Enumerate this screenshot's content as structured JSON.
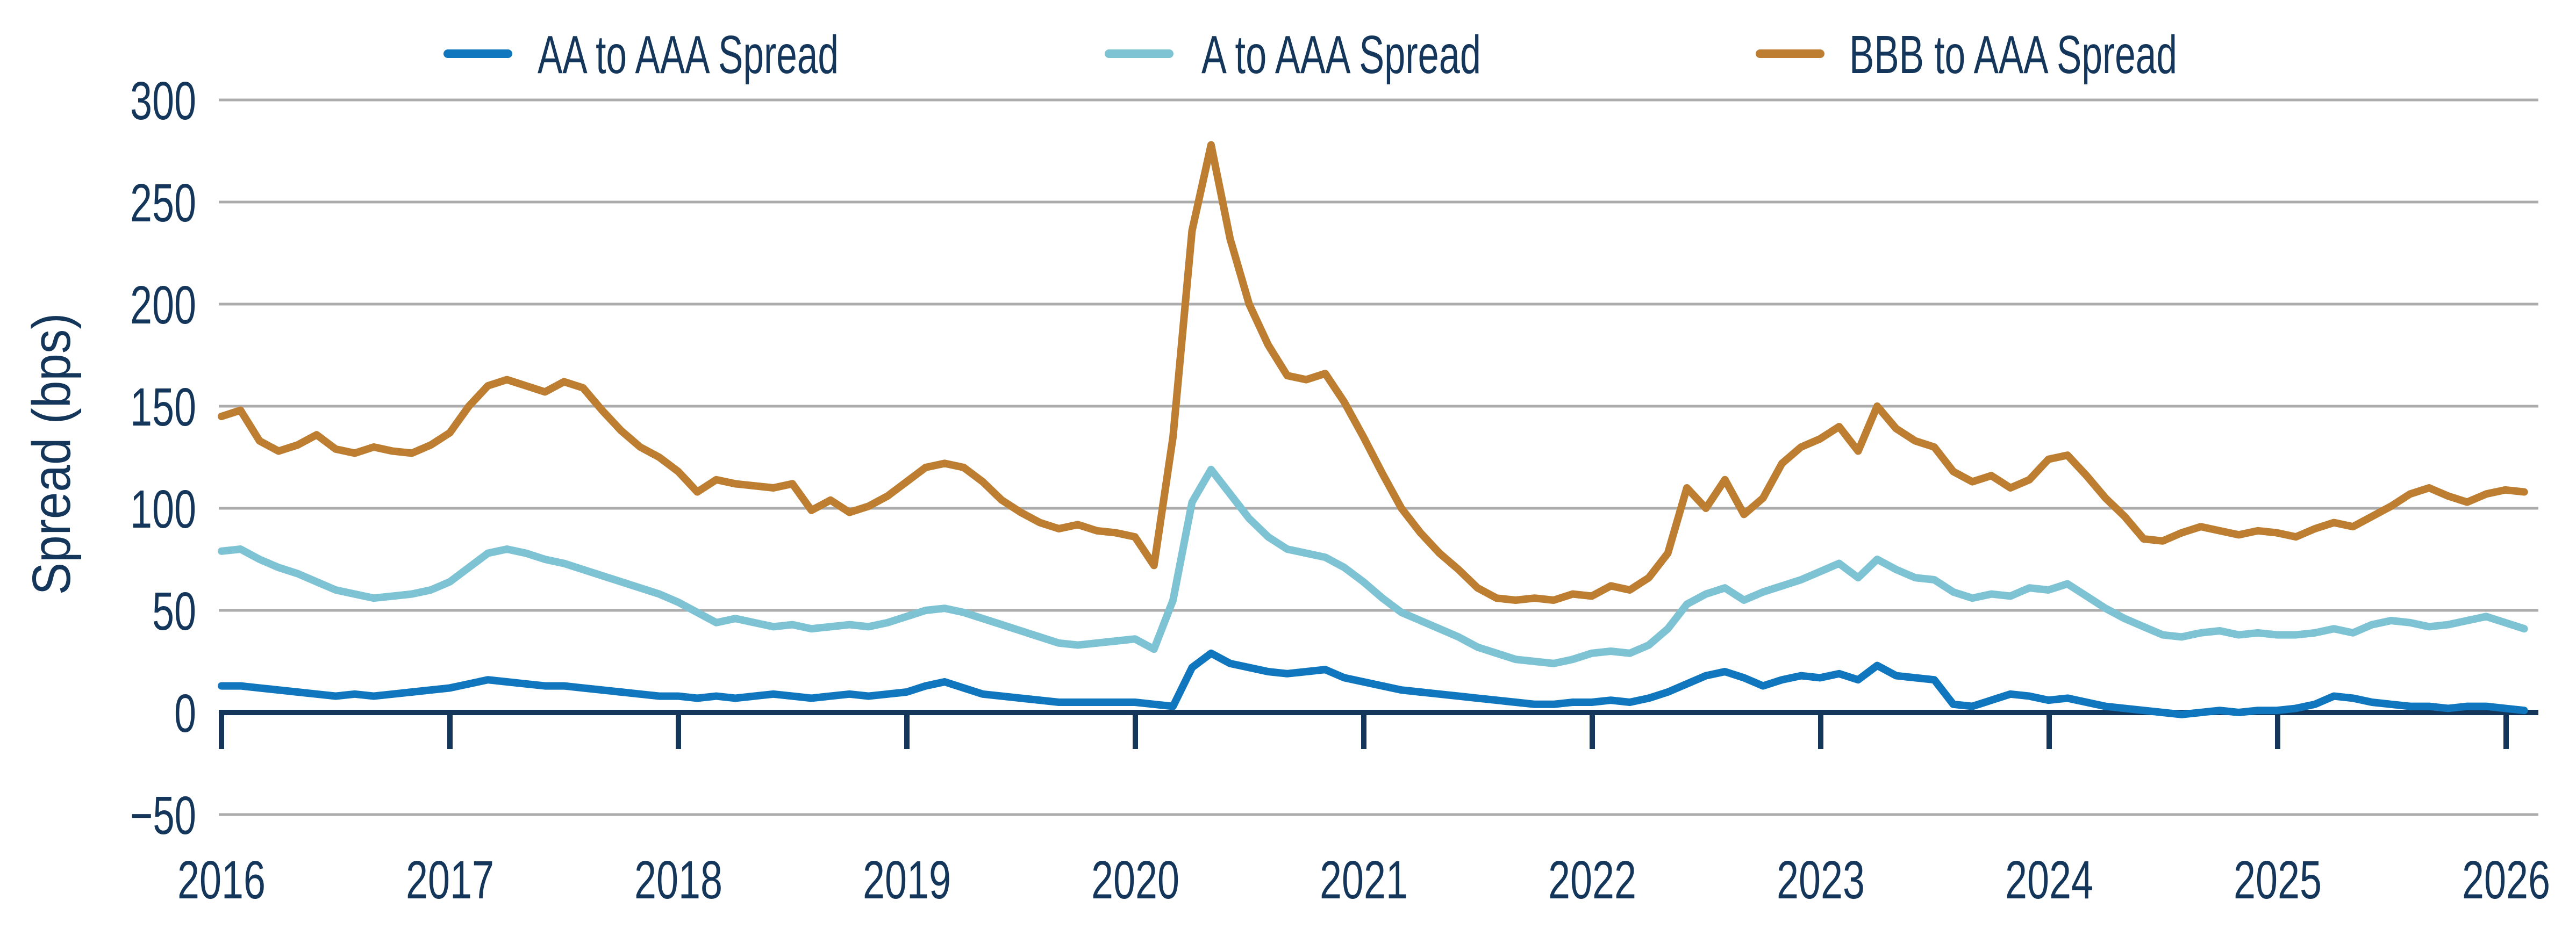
{
  "colors": {
    "text_navy": "#15365B",
    "axis_navy": "#15365B",
    "gridline_gray": "#ACACAC",
    "background": "#FFFFFF"
  },
  "chart_data": {
    "type": "line",
    "title": "",
    "xlabel": "",
    "ylabel": "Spread (bps)",
    "ylim": [
      -50,
      300
    ],
    "yticks": [
      300,
      250,
      200,
      150,
      100,
      50,
      0,
      -50
    ],
    "xticks": [
      2016,
      2017,
      2018,
      2019,
      2020,
      2021,
      2022,
      2023,
      2024,
      2025,
      2026
    ],
    "grid": "horizontal-only",
    "legend_position": "top",
    "x_start_year": 2016.0,
    "x_step_years": 0.0833,
    "series": [
      {
        "name": "AA to AAA Spread",
        "color": "#1076BE",
        "values": [
          13,
          13,
          12,
          11,
          10,
          9,
          8,
          9,
          8,
          9,
          10,
          11,
          12,
          14,
          16,
          15,
          14,
          13,
          13,
          12,
          11,
          10,
          9,
          8,
          8,
          7,
          8,
          7,
          8,
          9,
          8,
          7,
          8,
          9,
          8,
          9,
          10,
          13,
          15,
          12,
          9,
          8,
          7,
          6,
          5,
          5,
          5,
          5,
          5,
          4,
          3,
          22,
          29,
          24,
          22,
          20,
          19,
          20,
          21,
          17,
          15,
          13,
          11,
          10,
          9,
          8,
          7,
          6,
          5,
          4,
          4,
          5,
          5,
          6,
          5,
          7,
          10,
          14,
          18,
          20,
          17,
          13,
          16,
          18,
          17,
          19,
          16,
          23,
          18,
          17,
          16,
          4,
          3,
          6,
          9,
          8,
          6,
          7,
          5,
          3,
          2,
          1,
          0,
          -1,
          0,
          1,
          0,
          1,
          1,
          2,
          4,
          8,
          7,
          5,
          4,
          3,
          3,
          2,
          3,
          3,
          2,
          1
        ]
      },
      {
        "name": "A to AAA Spread",
        "color": "#7EC3D4",
        "values": [
          79,
          80,
          75,
          71,
          68,
          64,
          60,
          58,
          56,
          57,
          58,
          60,
          64,
          71,
          78,
          80,
          78,
          75,
          73,
          70,
          67,
          64,
          61,
          58,
          54,
          49,
          44,
          46,
          44,
          42,
          43,
          41,
          42,
          43,
          42,
          44,
          47,
          50,
          51,
          49,
          46,
          43,
          40,
          37,
          34,
          33,
          34,
          35,
          36,
          31,
          55,
          103,
          119,
          107,
          95,
          86,
          80,
          78,
          76,
          71,
          64,
          56,
          49,
          45,
          41,
          37,
          32,
          29,
          26,
          25,
          24,
          26,
          29,
          30,
          29,
          33,
          41,
          53,
          58,
          61,
          55,
          59,
          62,
          65,
          69,
          73,
          66,
          75,
          70,
          66,
          65,
          59,
          56,
          58,
          57,
          61,
          60,
          63,
          57,
          51,
          46,
          42,
          38,
          37,
          39,
          40,
          38,
          39,
          38,
          38,
          39,
          41,
          39,
          43,
          45,
          44,
          42,
          43,
          45,
          47,
          44,
          41
        ]
      },
      {
        "name": "BBB to AAA Spread",
        "color": "#BD7E31",
        "values": [
          145,
          148,
          133,
          128,
          131,
          136,
          129,
          127,
          130,
          128,
          127,
          131,
          137,
          150,
          160,
          163,
          160,
          157,
          162,
          159,
          148,
          138,
          130,
          125,
          118,
          108,
          114,
          112,
          111,
          110,
          112,
          99,
          104,
          98,
          101,
          106,
          113,
          120,
          122,
          120,
          113,
          104,
          98,
          93,
          90,
          92,
          89,
          88,
          86,
          72,
          135,
          236,
          278,
          232,
          200,
          180,
          165,
          163,
          166,
          152,
          135,
          117,
          100,
          88,
          78,
          70,
          61,
          56,
          55,
          56,
          55,
          58,
          57,
          62,
          60,
          66,
          78,
          110,
          100,
          114,
          97,
          105,
          122,
          130,
          134,
          140,
          128,
          150,
          139,
          133,
          130,
          118,
          113,
          116,
          110,
          114,
          124,
          126,
          116,
          105,
          96,
          85,
          84,
          88,
          91,
          89,
          87,
          89,
          88,
          86,
          90,
          93,
          91,
          96,
          101,
          107,
          110,
          106,
          103,
          107,
          109,
          108
        ]
      }
    ]
  }
}
